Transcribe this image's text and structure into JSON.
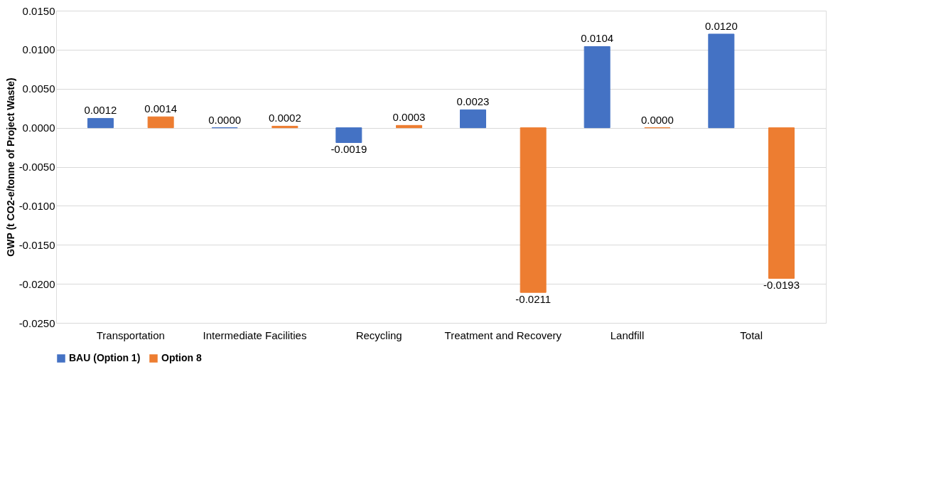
{
  "chart_data": {
    "type": "bar",
    "ylabel": "GWP (t CO2-e/tonne of Project Waste)",
    "categories": [
      "Transportation",
      "Intermediate Facilities",
      "Recycling",
      "Treatment and Recovery",
      "Landfill",
      "Total"
    ],
    "series": [
      {
        "name": "BAU (Option 1)",
        "color": "#4472c4",
        "values": [
          0.0012,
          0.0,
          -0.0019,
          0.0023,
          0.0104,
          0.012
        ],
        "value_labels": [
          "0.0012",
          "0.0000",
          "-0.0019",
          "0.0023",
          "0.0104",
          "0.0120"
        ]
      },
      {
        "name": "Option 8",
        "color": "#ed7d31",
        "values": [
          0.0014,
          0.0002,
          0.0003,
          -0.0211,
          0.0,
          -0.0193
        ],
        "value_labels": [
          "0.0014",
          "0.0002",
          "0.0003",
          "-0.0211",
          "0.0000",
          "-0.0193"
        ]
      }
    ],
    "ylim": [
      -0.025,
      0.015
    ],
    "yticks": [
      {
        "value": -0.025,
        "label": "-0.0250"
      },
      {
        "value": -0.02,
        "label": "-0.0200"
      },
      {
        "value": -0.015,
        "label": "-0.0150"
      },
      {
        "value": -0.01,
        "label": "-0.0100"
      },
      {
        "value": -0.005,
        "label": "-0.0050"
      },
      {
        "value": 0,
        "label": "0.0000"
      },
      {
        "value": 0.005,
        "label": "0.0050"
      },
      {
        "value": 0.01,
        "label": "0.0100"
      },
      {
        "value": 0.015,
        "label": "0.0150"
      }
    ],
    "grid": "y",
    "legend": "bottom"
  }
}
